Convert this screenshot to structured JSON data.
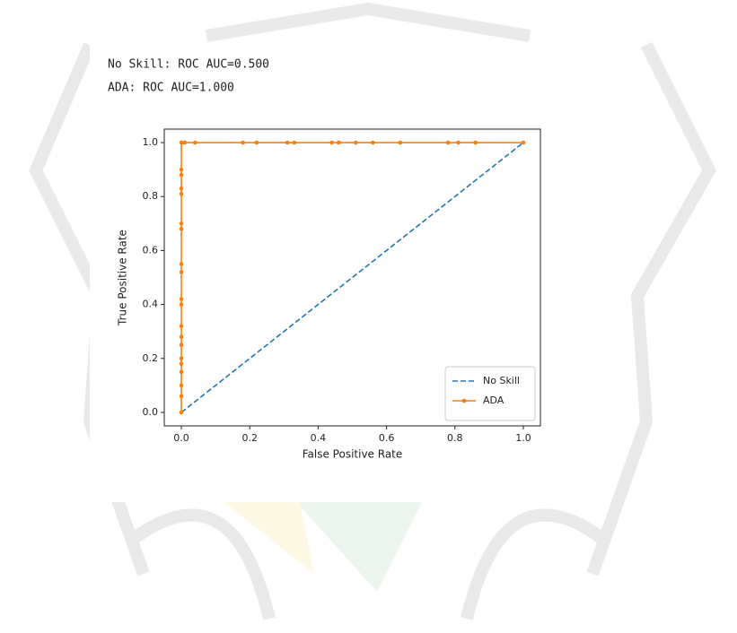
{
  "output_lines": [
    "No Skill: ROC AUC=0.500",
    "ADA: ROC AUC=1.000"
  ],
  "chart_data": {
    "type": "line",
    "xlabel": "False Positive Rate",
    "ylabel": "True Positive Rate",
    "xlim": [
      -0.05,
      1.05
    ],
    "ylim": [
      -0.05,
      1.05
    ],
    "xticks": [
      {
        "value": 0,
        "label": "0.0"
      },
      0.2,
      0.4,
      0.6,
      0.8,
      {
        "value": 1,
        "label": "1.0"
      }
    ],
    "yticks": [
      {
        "value": 0,
        "label": "0.0"
      },
      0.2,
      0.4,
      0.6,
      0.8,
      {
        "value": 1,
        "label": "1.0"
      }
    ],
    "legend": "lower right",
    "series": [
      {
        "name": "No Skill",
        "color": "#1f77b4",
        "style": "dashed",
        "marker": false,
        "x": [
          0,
          1
        ],
        "values": [
          0,
          1
        ]
      },
      {
        "name": "ADA",
        "color": "#ff7f0e",
        "style": "solid",
        "marker": true,
        "x": [
          0,
          0,
          0,
          0,
          0,
          0,
          0,
          0,
          0,
          0,
          0,
          0,
          0,
          0,
          0,
          0,
          0,
          0,
          0,
          0,
          0.01,
          0.04,
          0.18,
          0.22,
          0.31,
          0.33,
          0.44,
          0.46,
          0.51,
          0.56,
          0.64,
          0.78,
          0.81,
          0.86,
          1
        ],
        "values": [
          0,
          0.06,
          0.1,
          0.15,
          0.18,
          0.2,
          0.25,
          0.28,
          0.32,
          0.4,
          0.42,
          0.52,
          0.55,
          0.68,
          0.7,
          0.81,
          0.83,
          0.88,
          0.9,
          1,
          1,
          1,
          1,
          1,
          1,
          1,
          1,
          1,
          1,
          1,
          1,
          1,
          1,
          1,
          1
        ]
      }
    ]
  }
}
